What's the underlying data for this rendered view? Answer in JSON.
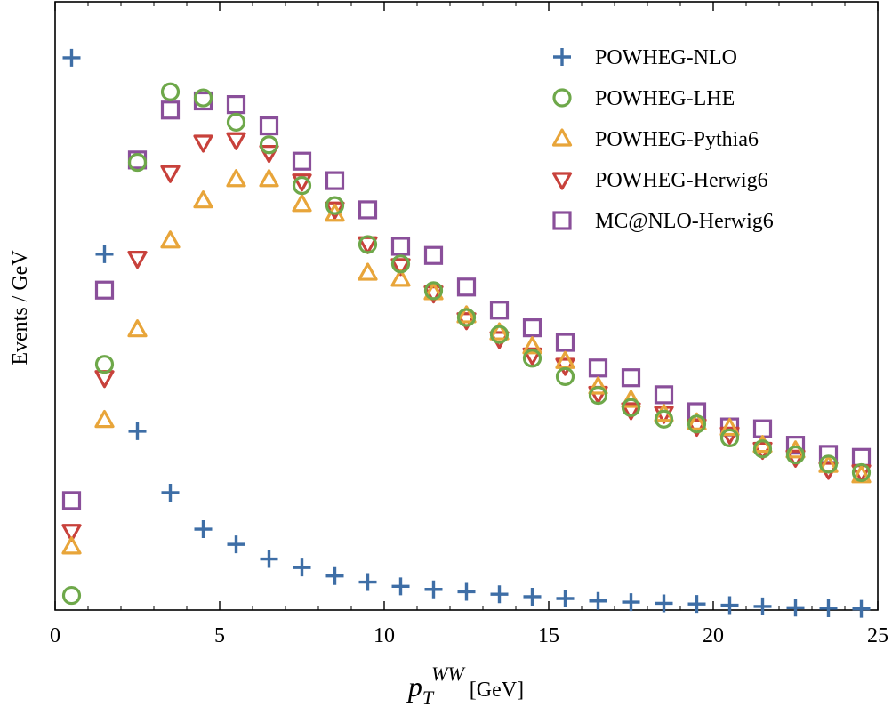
{
  "chart_data": {
    "type": "scatter",
    "xlabel": "p",
    "xlabel_sub": "T",
    "xlabel_sup": "WW",
    "xlabel_unit": " [GeV]",
    "ylabel": "Events / GeV",
    "xlim": [
      0,
      25
    ],
    "ylim": [
      0,
      100
    ],
    "y_tick_labels_shown": false,
    "grid": false,
    "legend_position": "top-right",
    "x_ticks": [
      0,
      5,
      10,
      15,
      20,
      25
    ],
    "x_tick_labels": [
      "0",
      "5",
      "10",
      "15",
      "20",
      "25"
    ],
    "x": [
      0.5,
      1.5,
      2.5,
      3.5,
      4.5,
      5.5,
      6.5,
      7.5,
      8.5,
      9.5,
      10.5,
      11.5,
      12.5,
      13.5,
      14.5,
      15.5,
      16.5,
      17.5,
      18.5,
      19.5,
      20.5,
      21.5,
      22.5,
      23.5,
      24.5
    ],
    "series": [
      {
        "name": "POWHEG-NLO",
        "marker": "plus",
        "color": "#3e6ea6",
        "values": [
          90.8,
          58.5,
          29.4,
          19.3,
          13.3,
          10.8,
          8.4,
          7.0,
          5.6,
          4.6,
          3.9,
          3.4,
          3.0,
          2.6,
          2.2,
          1.9,
          1.5,
          1.3,
          1.1,
          1.0,
          0.8,
          0.6,
          0.4,
          0.3,
          0.2
        ]
      },
      {
        "name": "POWHEG-LHE",
        "marker": "circle",
        "color": "#6ea84a",
        "values": [
          2.4,
          40.4,
          73.6,
          85.2,
          84.2,
          80.2,
          76.5,
          69.8,
          66.5,
          60.1,
          56.9,
          52.5,
          48.1,
          45.3,
          41.4,
          38.4,
          35.3,
          33.3,
          31.4,
          30.6,
          28.3,
          26.5,
          25.5,
          24.0,
          22.6
        ]
      },
      {
        "name": "POWHEG-Pythia6",
        "marker": "triangle-up",
        "color": "#e8a53a",
        "values": [
          10.4,
          31.2,
          46.1,
          60.7,
          67.3,
          70.8,
          70.8,
          66.7,
          65.1,
          55.4,
          54.4,
          52.2,
          48.4,
          45.6,
          43.3,
          40.9,
          36.7,
          34.5,
          32.2,
          30.8,
          29.9,
          27.1,
          26.2,
          23.8,
          22.1
        ]
      },
      {
        "name": "POWHEG-Herwig6",
        "marker": "triangle-down",
        "color": "#c8413b",
        "values": [
          12.9,
          38.2,
          57.8,
          71.9,
          76.9,
          77.3,
          75.2,
          70.5,
          65.9,
          60.2,
          56.6,
          52.1,
          47.7,
          44.6,
          41.9,
          40.2,
          35.6,
          32.9,
          32.3,
          30.2,
          28.9,
          26.4,
          25.1,
          23.1,
          22.7
        ]
      },
      {
        "name": "MC@NLO-Herwig6",
        "marker": "square",
        "color": "#8a4f9a",
        "values": [
          18.0,
          52.6,
          74.0,
          82.2,
          83.7,
          83.1,
          79.6,
          73.8,
          70.6,
          65.8,
          59.8,
          58.3,
          53.1,
          49.3,
          46.4,
          44.0,
          39.8,
          38.2,
          35.4,
          32.6,
          30.1,
          29.8,
          27.1,
          25.6,
          25.1
        ]
      }
    ]
  }
}
